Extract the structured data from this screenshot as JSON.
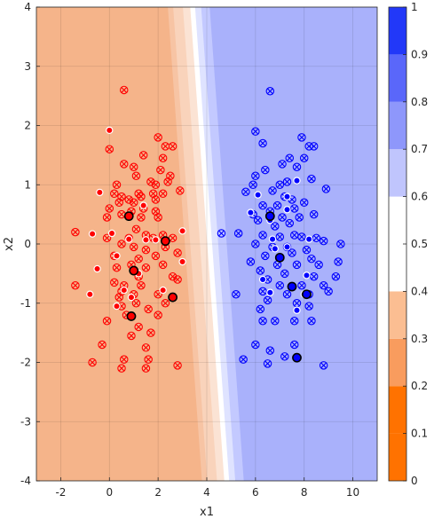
{
  "chart_data": {
    "type": "scatter",
    "title": "",
    "xlabel": "x1",
    "ylabel": "x2",
    "xlim": [
      -3,
      11
    ],
    "ylim": [
      -4,
      4
    ],
    "xticks": [
      -2,
      0,
      2,
      4,
      6,
      8,
      10
    ],
    "yticks": [
      -4,
      -3,
      -2,
      -1,
      0,
      1,
      2,
      3,
      4
    ],
    "grid": true,
    "background": {
      "description": "decision surface (probability of blue class)",
      "boundary_line": {
        "top": [
          3.3,
          4.0
        ],
        "bottom": [
          4.7,
          -4.0
        ]
      },
      "bands": [
        {
          "offset": -0.9,
          "color": "#f7c4a4"
        },
        {
          "offset": -0.5,
          "color": "#f9d3bb"
        },
        {
          "offset": -0.2,
          "color": "#fbe3d4"
        },
        {
          "offset": 0.0,
          "color": "#ffffff"
        },
        {
          "offset": 0.25,
          "color": "#dfe3ff"
        },
        {
          "offset": 0.6,
          "color": "#c3c9ff"
        }
      ],
      "left_color": "#f5b48a",
      "right_color": "#a9b1fb"
    },
    "colorbar": {
      "ticks": [
        "0",
        "0.1",
        "0.2",
        "0.3",
        "0.4",
        "0.5",
        "0.6",
        "0.7",
        "0.8",
        "0.9",
        "1"
      ],
      "segments": [
        {
          "from": 0.0,
          "to": 0.1,
          "color": "#ff7200"
        },
        {
          "from": 0.1,
          "to": 0.2,
          "color": "#ff7200"
        },
        {
          "from": 0.2,
          "to": 0.3,
          "color": "#f99c5e"
        },
        {
          "from": 0.3,
          "to": 0.4,
          "color": "#fbbe92"
        },
        {
          "from": 0.4,
          "to": 0.6,
          "color": "#ffffff"
        },
        {
          "from": 0.6,
          "to": 0.7,
          "color": "#c0c5fd"
        },
        {
          "from": 0.7,
          "to": 0.8,
          "color": "#8e97fb"
        },
        {
          "from": 0.8,
          "to": 0.9,
          "color": "#5a67fa"
        },
        {
          "from": 0.9,
          "to": 1.0,
          "color": "#2238f8"
        }
      ]
    },
    "series": [
      {
        "class": "red",
        "color": "#ff0000",
        "crossed_points": [
          [
            0.6,
            2.6
          ],
          [
            0.0,
            1.6
          ],
          [
            2.0,
            1.8
          ],
          [
            2.3,
            1.65
          ],
          [
            2.6,
            1.65
          ],
          [
            1.4,
            1.5
          ],
          [
            2.2,
            1.45
          ],
          [
            0.6,
            1.35
          ],
          [
            1.0,
            1.3
          ],
          [
            2.1,
            1.25
          ],
          [
            1.1,
            1.15
          ],
          [
            2.5,
            1.15
          ],
          [
            1.7,
            1.05
          ],
          [
            2.4,
            1.05
          ],
          [
            0.3,
            1.0
          ],
          [
            1.9,
            1.0
          ],
          [
            0.2,
            0.85
          ],
          [
            1.2,
            0.85
          ],
          [
            1.8,
            0.85
          ],
          [
            2.9,
            0.9
          ],
          [
            0.5,
            0.8
          ],
          [
            1.3,
            0.8
          ],
          [
            0.8,
            0.75
          ],
          [
            2.2,
            0.85
          ],
          [
            0.4,
            0.7
          ],
          [
            1.0,
            0.7
          ],
          [
            1.9,
            0.75
          ],
          [
            0.0,
            0.6
          ],
          [
            0.9,
            0.55
          ],
          [
            1.4,
            0.6
          ],
          [
            1.9,
            0.55
          ],
          [
            -0.1,
            0.45
          ],
          [
            0.5,
            0.5
          ],
          [
            1.3,
            0.45
          ],
          [
            2.0,
            0.45
          ],
          [
            -1.4,
            0.2
          ],
          [
            1.1,
            0.25
          ],
          [
            1.5,
            0.15
          ],
          [
            2.2,
            0.15
          ],
          [
            -0.1,
            0.1
          ],
          [
            0.8,
            0.1
          ],
          [
            1.8,
            0.1
          ],
          [
            2.6,
            0.1
          ],
          [
            0.5,
            0.0
          ],
          [
            1.0,
            -0.05
          ],
          [
            1.5,
            -0.1
          ],
          [
            2.3,
            -0.05
          ],
          [
            0.2,
            -0.2
          ],
          [
            1.2,
            -0.25
          ],
          [
            1.9,
            -0.2
          ],
          [
            2.8,
            -0.15
          ],
          [
            0.3,
            -0.4
          ],
          [
            0.9,
            -0.35
          ],
          [
            1.5,
            -0.4
          ],
          [
            2.2,
            -0.35
          ],
          [
            1.2,
            -0.55
          ],
          [
            2.6,
            -0.55
          ],
          [
            0.2,
            -0.65
          ],
          [
            0.6,
            -0.7
          ],
          [
            1.3,
            -0.7
          ],
          [
            2.8,
            -0.6
          ],
          [
            -1.4,
            -0.7
          ],
          [
            0.5,
            -0.8
          ],
          [
            1.0,
            -0.85
          ],
          [
            2.0,
            -0.85
          ],
          [
            0.4,
            -0.9
          ],
          [
            1.1,
            -1.0
          ],
          [
            2.3,
            -1.0
          ],
          [
            0.5,
            -1.05
          ],
          [
            1.6,
            -1.1
          ],
          [
            0.7,
            -1.2
          ],
          [
            2.0,
            -1.2
          ],
          [
            -0.1,
            -1.3
          ],
          [
            1.2,
            -1.4
          ],
          [
            1.7,
            -1.5
          ],
          [
            0.9,
            -1.55
          ],
          [
            -0.3,
            -1.7
          ],
          [
            1.5,
            -1.75
          ],
          [
            0.6,
            -1.95
          ],
          [
            1.6,
            -1.95
          ],
          [
            -0.7,
            -2.0
          ],
          [
            0.5,
            -2.1
          ],
          [
            1.5,
            -2.1
          ],
          [
            2.8,
            -2.05
          ]
        ],
        "dot_points": [
          [
            0.0,
            1.92
          ],
          [
            -0.4,
            0.87
          ],
          [
            0.8,
            0.45
          ],
          [
            1.4,
            0.65
          ],
          [
            -0.7,
            0.17
          ],
          [
            0.1,
            0.18
          ],
          [
            0.8,
            0.08
          ],
          [
            1.5,
            0.07
          ],
          [
            1.9,
            0.07
          ],
          [
            3.0,
            0.22
          ],
          [
            -0.5,
            -0.42
          ],
          [
            0.3,
            -0.2
          ],
          [
            1.2,
            -0.5
          ],
          [
            2.2,
            -0.78
          ],
          [
            3.0,
            -0.3
          ],
          [
            -0.8,
            -0.85
          ],
          [
            0.9,
            -0.9
          ],
          [
            0.3,
            -1.05
          ],
          [
            0.6,
            -0.78
          ]
        ],
        "bold_points": [
          [
            0.8,
            0.47
          ],
          [
            2.3,
            0.05
          ],
          [
            1.0,
            -0.45
          ],
          [
            2.6,
            -0.9
          ],
          [
            0.9,
            -1.22
          ]
        ]
      },
      {
        "class": "blue",
        "color": "#0000ff",
        "crossed_points": [
          [
            6.6,
            2.58
          ],
          [
            6.0,
            1.9
          ],
          [
            6.3,
            1.7
          ],
          [
            7.9,
            1.8
          ],
          [
            8.2,
            1.65
          ],
          [
            8.4,
            1.65
          ],
          [
            7.1,
            1.35
          ],
          [
            7.7,
            1.3
          ],
          [
            6.4,
            1.25
          ],
          [
            7.4,
            1.45
          ],
          [
            8.0,
            1.45
          ],
          [
            7.3,
            1.05
          ],
          [
            6.0,
            1.15
          ],
          [
            5.9,
            1.0
          ],
          [
            7.0,
            1.0
          ],
          [
            8.3,
            1.1
          ],
          [
            5.6,
            0.88
          ],
          [
            6.7,
            0.9
          ],
          [
            7.2,
            0.8
          ],
          [
            7.5,
            0.75
          ],
          [
            8.9,
            0.93
          ],
          [
            6.3,
            0.65
          ],
          [
            6.9,
            0.65
          ],
          [
            7.6,
            0.6
          ],
          [
            8.0,
            0.7
          ],
          [
            5.9,
            0.5
          ],
          [
            6.6,
            0.55
          ],
          [
            7.1,
            0.45
          ],
          [
            7.8,
            0.45
          ],
          [
            8.4,
            0.5
          ],
          [
            6.1,
            0.4
          ],
          [
            7.4,
            0.35
          ],
          [
            6.8,
            0.3
          ],
          [
            4.6,
            0.18
          ],
          [
            5.3,
            0.18
          ],
          [
            6.3,
            0.15
          ],
          [
            7.0,
            0.12
          ],
          [
            7.6,
            0.15
          ],
          [
            7.9,
            0.12
          ],
          [
            8.5,
            0.1
          ],
          [
            6.0,
            0.0
          ],
          [
            6.7,
            -0.05
          ],
          [
            7.3,
            -0.05
          ],
          [
            8.1,
            -0.1
          ],
          [
            8.8,
            0.05
          ],
          [
            9.5,
            0.0
          ],
          [
            6.4,
            -0.2
          ],
          [
            7.5,
            -0.15
          ],
          [
            8.3,
            -0.25
          ],
          [
            9.4,
            -0.3
          ],
          [
            5.8,
            -0.3
          ],
          [
            6.9,
            -0.35
          ],
          [
            7.7,
            -0.35
          ],
          [
            8.6,
            -0.35
          ],
          [
            6.2,
            -0.45
          ],
          [
            7.2,
            -0.5
          ],
          [
            8.4,
            -0.55
          ],
          [
            9.3,
            -0.55
          ],
          [
            6.5,
            -0.6
          ],
          [
            7.0,
            -0.7
          ],
          [
            7.9,
            -0.7
          ],
          [
            8.8,
            -0.7
          ],
          [
            5.2,
            -0.85
          ],
          [
            6.3,
            -0.8
          ],
          [
            7.3,
            -0.85
          ],
          [
            8.2,
            -0.85
          ],
          [
            9.0,
            -0.8
          ],
          [
            6.5,
            -0.95
          ],
          [
            7.7,
            -1.0
          ],
          [
            8.2,
            -1.05
          ],
          [
            6.2,
            -1.1
          ],
          [
            6.8,
            -1.3
          ],
          [
            7.6,
            -1.3
          ],
          [
            8.3,
            -1.3
          ],
          [
            6.3,
            -1.3
          ],
          [
            6.0,
            -1.7
          ],
          [
            7.6,
            -1.7
          ],
          [
            6.6,
            -1.8
          ],
          [
            7.2,
            -1.9
          ],
          [
            5.5,
            -1.95
          ],
          [
            6.5,
            -2.02
          ],
          [
            8.8,
            -2.05
          ]
        ],
        "dot_points": [
          [
            7.7,
            1.07
          ],
          [
            7.3,
            0.8
          ],
          [
            6.1,
            0.83
          ],
          [
            5.8,
            0.53
          ],
          [
            6.6,
            0.4
          ],
          [
            7.3,
            0.58
          ],
          [
            7.3,
            -0.05
          ],
          [
            6.7,
            0.08
          ],
          [
            8.2,
            0.08
          ],
          [
            6.8,
            -0.08
          ],
          [
            8.1,
            -0.53
          ],
          [
            6.3,
            -0.6
          ],
          [
            7.7,
            -1.12
          ],
          [
            8.0,
            -0.85
          ],
          [
            6.6,
            -0.82
          ]
        ],
        "bold_points": [
          [
            6.6,
            0.47
          ],
          [
            7.0,
            -0.23
          ],
          [
            7.5,
            -0.72
          ],
          [
            8.1,
            -0.85
          ],
          [
            7.7,
            -1.92
          ]
        ]
      }
    ]
  }
}
